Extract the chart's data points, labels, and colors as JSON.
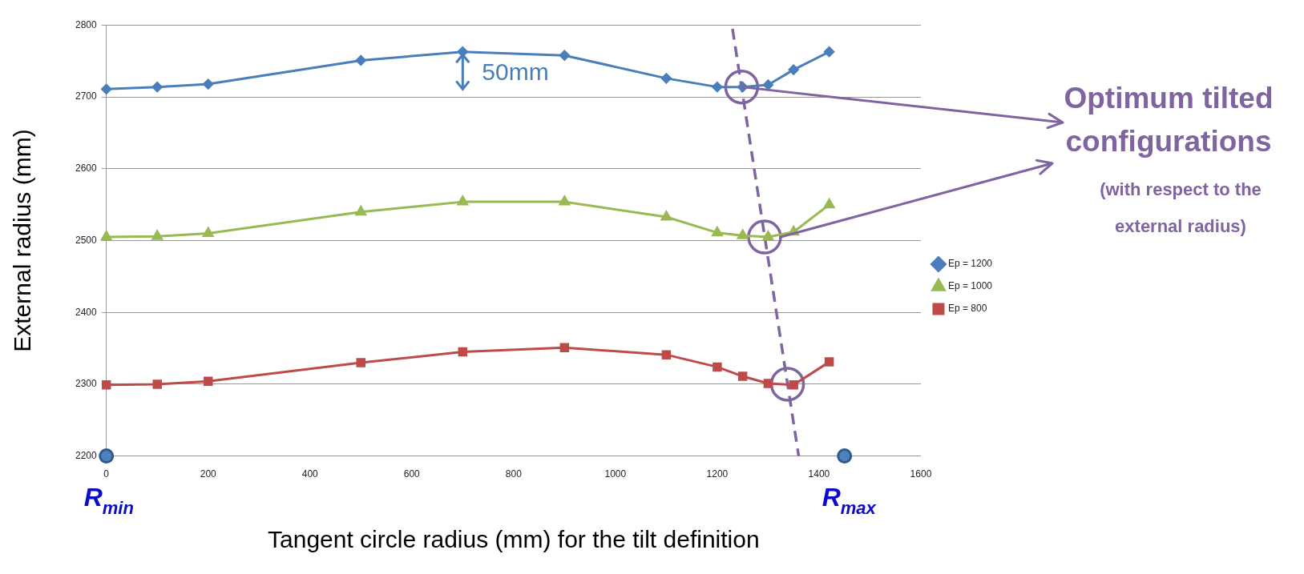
{
  "chart_data": {
    "type": "line",
    "xlabel": "Tangent circle radius (mm) for the tilt definition",
    "ylabel": "External radius (mm)",
    "xlim": [
      0,
      1600
    ],
    "xticks": [
      0,
      200,
      400,
      600,
      800,
      1000,
      1200,
      1400,
      1600
    ],
    "ylim": [
      2200,
      2800
    ],
    "yticks": [
      2200,
      2300,
      2400,
      2500,
      2600,
      2700,
      2800
    ],
    "grid": "y",
    "legend": "right",
    "x": [
      0,
      100,
      200,
      500,
      700,
      900,
      1100,
      1200,
      1250,
      1300,
      1350,
      1420
    ],
    "series": [
      {
        "name": "Ep = 1200",
        "color": "#4a7ebb",
        "marker": "diamond",
        "values": [
          2711,
          2714,
          2718,
          2751,
          2763,
          2758,
          2726,
          2714,
          2714,
          2717,
          2738,
          2763
        ]
      },
      {
        "name": "Ep = 1000",
        "color": "#98b954",
        "marker": "triangle",
        "values": [
          2505,
          2506,
          2510,
          2540,
          2554,
          2554,
          2533,
          2511,
          2507,
          2505,
          2512,
          2550
        ]
      },
      {
        "name": "Ep = 800",
        "color": "#be4b48",
        "marker": "square",
        "values": [
          2299,
          2300,
          2304,
          2330,
          2345,
          2351,
          2341,
          2324,
          2311,
          2301,
          2299,
          2331
        ]
      },
      {
        "type": "scatter",
        "color": "#8064a2",
        "marker": "circle",
        "x": [
          1248,
          1293,
          1338
        ],
        "values": [
          2714,
          2505,
          2300
        ]
      },
      {
        "type": "line",
        "color": "#8064a2",
        "marker": "none",
        "line_style": "dashed",
        "x": [
          1230,
          1360
        ],
        "values": [
          2795,
          2200
        ]
      }
    ],
    "annotations": [
      "50mm",
      {
        "text": "R$_{min}$",
        "x": 0,
        "y": 2200
      },
      {
        "text": "R$_{max}$",
        "x": 1450,
        "y": 2200
      },
      {
        "text": "Optimum tilted configurations",
        "x": 1248,
        "y": 2714
      },
      "(with respect to the external radius)"
    ]
  }
}
